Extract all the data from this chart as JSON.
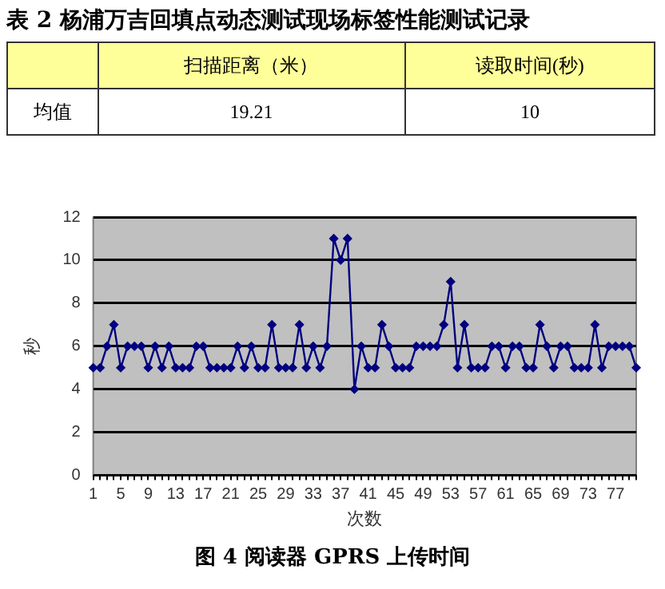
{
  "chart_data": [
    {
      "type": "other",
      "title": "表 2 杨浦万吉回填点动态测试现场标签性能测试记录",
      "categories": [
        "扫描距离（米）",
        "读取时间(秒)"
      ],
      "y_categories": [
        "均值"
      ],
      "values": [
        19.21,
        10
      ],
      "data_labels": true
    },
    {
      "type": "line",
      "title": "图 4 阅读器 GPRS 上传时间",
      "xlabel": "次数",
      "ylabel": "秒",
      "categories": [
        "1",
        null,
        null,
        null,
        "5",
        null,
        null,
        null,
        "9",
        null,
        null,
        null,
        "13",
        null,
        null,
        null,
        "17",
        null,
        null,
        null,
        "21",
        null,
        null,
        null,
        "25",
        null,
        null,
        null,
        "29",
        null,
        null,
        null,
        "33",
        null,
        null,
        null,
        "37",
        null,
        null,
        null,
        "41",
        null,
        null,
        null,
        "45",
        null,
        null,
        null,
        "49",
        null,
        null,
        null,
        "53",
        null,
        null,
        null,
        "57",
        null,
        null,
        null,
        "61",
        null,
        null,
        null,
        "65",
        null,
        null,
        null,
        "69",
        null,
        null,
        null,
        "73",
        null,
        null,
        null,
        "77",
        null,
        null,
        null
      ],
      "series": [
        {
          "color": "#000080",
          "values": [
            5,
            5,
            6,
            7,
            5,
            6,
            6,
            6,
            5,
            6,
            5,
            6,
            5,
            5,
            5,
            6,
            6,
            5,
            5,
            5,
            5,
            6,
            5,
            6,
            5,
            5,
            7,
            5,
            5,
            5,
            7,
            5,
            6,
            5,
            6,
            11,
            10,
            11,
            4,
            6,
            5,
            5,
            7,
            6,
            5,
            5,
            5,
            6,
            6,
            6,
            6,
            7,
            9,
            5,
            7,
            5,
            5,
            5,
            6,
            6,
            5,
            6,
            6,
            5,
            5,
            7,
            6,
            5,
            6,
            6,
            5,
            5,
            5,
            7,
            5,
            6,
            6,
            6,
            6,
            5
          ]
        }
      ],
      "ylim": [
        0,
        12
      ],
      "yticks": [
        0,
        2,
        4,
        6,
        8,
        10,
        12
      ],
      "grid": "y",
      "marker": "diamond",
      "line_style": "solid",
      "legend": false
    }
  ]
}
